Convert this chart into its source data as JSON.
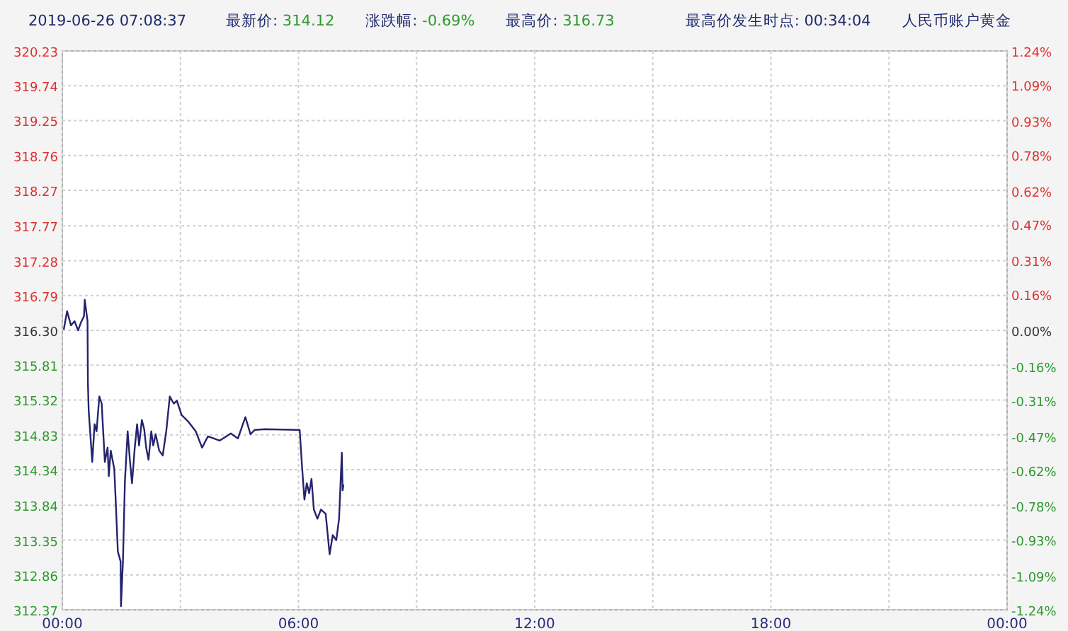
{
  "chart_data": {
    "type": "line",
    "title": "2019-06-26 07:08:37",
    "annotations": [
      "最新价: 314.12",
      "涨跌幅: -0.69%",
      "最高价: 316.73",
      "最高价发生时点:  00:34:04",
      "人民币账户黄金"
    ],
    "series": [
      {
        "color": "#24246e",
        "x": [
          0.04,
          0.12,
          0.22,
          0.31,
          0.4,
          0.48,
          0.55,
          0.57,
          0.64,
          0.65,
          0.67,
          0.76,
          0.82,
          0.87,
          0.94,
          1.0,
          1.08,
          1.15,
          1.18,
          1.23,
          1.32,
          1.36,
          1.41,
          1.48,
          1.49,
          1.54,
          1.59,
          1.66,
          1.72,
          1.77,
          1.84,
          1.9,
          1.95,
          2.02,
          2.08,
          2.13,
          2.19,
          2.26,
          2.31,
          2.37,
          2.46,
          2.55,
          2.64,
          2.73,
          2.83,
          2.91,
          3.03,
          3.21,
          3.39,
          3.55,
          3.7,
          4.0,
          4.28,
          4.46,
          4.65,
          4.78,
          4.89,
          5.14,
          6.03,
          6.09,
          6.15,
          6.21,
          6.27,
          6.33,
          6.39,
          6.48,
          6.57,
          6.69,
          6.79,
          6.87,
          6.96,
          7.03,
          7.1,
          7.12,
          7.14
        ],
        "values": [
          316.32,
          316.57,
          316.37,
          316.43,
          316.3,
          316.42,
          316.5,
          316.73,
          316.43,
          315.57,
          315.17,
          314.45,
          314.98,
          314.88,
          315.37,
          315.27,
          314.45,
          314.65,
          314.25,
          314.61,
          314.35,
          313.85,
          313.19,
          313.05,
          312.42,
          313.05,
          314.18,
          314.88,
          314.45,
          314.15,
          314.65,
          314.98,
          314.68,
          315.04,
          314.91,
          314.65,
          314.48,
          314.88,
          314.68,
          314.84,
          314.61,
          314.54,
          314.88,
          315.37,
          315.27,
          315.31,
          315.11,
          315.01,
          314.88,
          314.65,
          314.81,
          314.75,
          314.85,
          314.78,
          315.08,
          314.84,
          314.9,
          314.91,
          314.9,
          314.38,
          313.92,
          314.15,
          314.01,
          314.21,
          313.78,
          313.65,
          313.78,
          313.72,
          313.15,
          313.42,
          313.35,
          313.65,
          314.58,
          314.05,
          314.12
        ]
      }
    ],
    "xlim": [
      0,
      24
    ],
    "xticks": [
      {
        "value": 0,
        "label": "00:00"
      },
      {
        "value": 3,
        "label": null
      },
      {
        "value": 6,
        "label": "06:00"
      },
      {
        "value": 9,
        "label": null
      },
      {
        "value": 12,
        "label": "12:00"
      },
      {
        "value": 15,
        "label": null
      },
      {
        "value": 18,
        "label": "18:00"
      },
      {
        "value": 21,
        "label": null
      },
      {
        "value": 24,
        "label": "00:00"
      }
    ],
    "ylim": [
      312.37,
      320.23
    ],
    "yticks": [
      {
        "value": 312.37,
        "label": "312.37"
      },
      {
        "value": 312.86,
        "label": "312.86"
      },
      {
        "value": 313.35,
        "label": "313.35"
      },
      {
        "value": 313.84,
        "label": "313.84"
      },
      {
        "value": 314.34,
        "label": "314.34"
      },
      {
        "value": 314.83,
        "label": "314.83"
      },
      {
        "value": 315.32,
        "label": "315.32"
      },
      {
        "value": 315.81,
        "label": "315.81"
      },
      {
        "value": 316.3,
        "label": "316.30"
      },
      {
        "value": 316.79,
        "label": "316.79"
      },
      {
        "value": 317.28,
        "label": "317.28"
      },
      {
        "value": 317.77,
        "label": "317.77"
      },
      {
        "value": 318.27,
        "label": "318.27"
      },
      {
        "value": 318.76,
        "label": "318.76"
      },
      {
        "value": 319.25,
        "label": "319.25"
      },
      {
        "value": 319.74,
        "label": "319.74"
      },
      {
        "value": 320.23,
        "label": "320.23"
      }
    ],
    "y2lim": [
      -1.24,
      1.24
    ],
    "y2ticks": [
      {
        "value": -1.24,
        "label": "-1.24%"
      },
      {
        "value": -1.09,
        "label": "-1.09%"
      },
      {
        "value": -0.93,
        "label": "-0.93%"
      },
      {
        "value": -0.78,
        "label": "-0.78%"
      },
      {
        "value": -0.62,
        "label": "-0.62%"
      },
      {
        "value": -0.47,
        "label": "-0.47%"
      },
      {
        "value": -0.31,
        "label": "-0.31%"
      },
      {
        "value": -0.16,
        "label": "-0.16%"
      },
      {
        "value": 0,
        "label": "0.00%"
      },
      {
        "value": 0.16,
        "label": "0.16%"
      },
      {
        "value": 0.31,
        "label": "0.31%"
      },
      {
        "value": 0.47,
        "label": "0.47%"
      },
      {
        "value": 0.62,
        "label": "0.62%"
      },
      {
        "value": 0.78,
        "label": "0.78%"
      },
      {
        "value": 0.93,
        "label": "0.93%"
      },
      {
        "value": 1.09,
        "label": "1.09%"
      },
      {
        "value": 1.24,
        "label": "1.24%"
      }
    ],
    "grid": true,
    "marker": "none",
    "line_style": "solid"
  }
}
